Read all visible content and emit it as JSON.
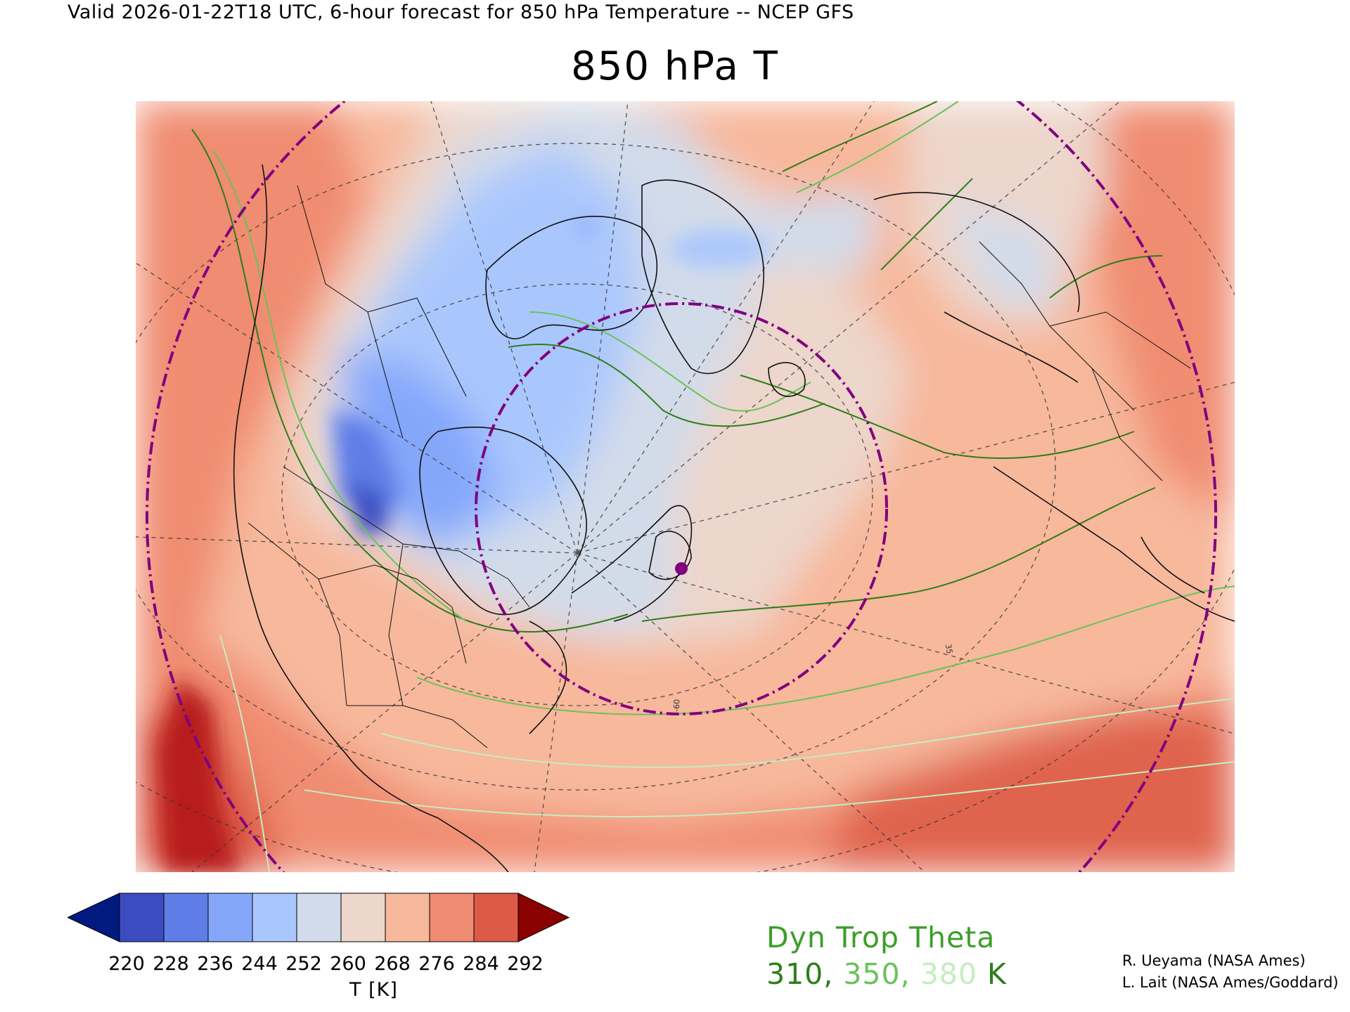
{
  "header": "Valid 2026-01-22T18 UTC, 6-hour forecast for 850 hPa Temperature -- NCEP GFS",
  "title": "850 hPa T",
  "map": {
    "region": "North America / Arctic / North Atlantic, polar stereographic",
    "meridian_label": "-60",
    "latitude_label": "35",
    "fill_colors": [
      "#001a80",
      "#3b4cc0",
      "#5f7de6",
      "#85a7fa",
      "#aac7fd",
      "#d2dbea",
      "#edd6cb",
      "#f7b89c",
      "#f08c71",
      "#dc5a46",
      "#8b0000"
    ]
  },
  "colorbar": {
    "ticks": [
      "220",
      "228",
      "236",
      "244",
      "252",
      "260",
      "268",
      "276",
      "284",
      "292"
    ],
    "colors": [
      "#3b4cc0",
      "#5f7de6",
      "#85a7fa",
      "#aac7fd",
      "#d2dbea",
      "#edd6cb",
      "#f7b89c",
      "#f08c71",
      "#dc5a46"
    ],
    "under_color": "#001a80",
    "over_color": "#8b0000",
    "units": "T [K]"
  },
  "legend": {
    "title": "Dyn Trop Theta",
    "values": [
      {
        "text": "310",
        "color": "#2d7e19"
      },
      {
        "text": "350",
        "color": "#6ac25a"
      },
      {
        "text": "380",
        "color": "#c4edc0"
      }
    ],
    "units": "K",
    "units_color": "#2d7e19"
  },
  "credits": [
    "R. Ueyama (NASA Ames)",
    "L. Lait (NASA Ames/Goddard)"
  ]
}
